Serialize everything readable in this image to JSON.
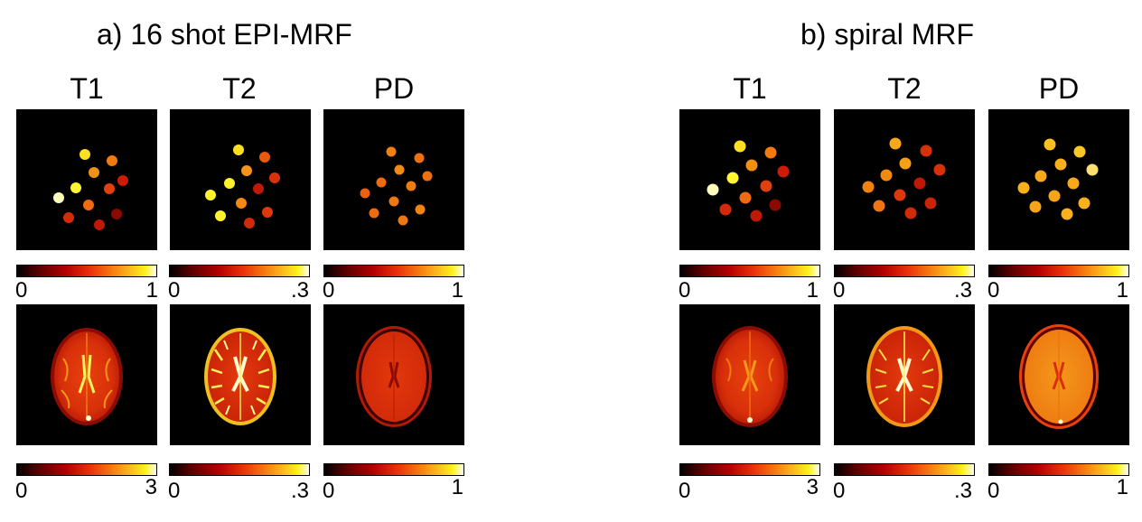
{
  "figure": {
    "panel_a": {
      "title": "a) 16 shot EPI-MRF",
      "columns": [
        {
          "label": "T1",
          "phantom_colorbar": {
            "min": "0",
            "max": "1"
          },
          "brain_colorbar": {
            "min": "0",
            "max": "3"
          }
        },
        {
          "label": "T2",
          "phantom_colorbar": {
            "min": "0",
            "max": ".3"
          },
          "brain_colorbar": {
            "min": "0",
            "max": ".3"
          }
        },
        {
          "label": "PD",
          "phantom_colorbar": {
            "min": "0",
            "max": "1"
          },
          "brain_colorbar": {
            "min": "0",
            "max": "1"
          }
        }
      ]
    },
    "panel_b": {
      "title": "b) spiral MRF",
      "columns": [
        {
          "label": "T1",
          "phantom_colorbar": {
            "min": "0",
            "max": "1"
          },
          "brain_colorbar": {
            "min": "0",
            "max": "3"
          }
        },
        {
          "label": "T2",
          "phantom_colorbar": {
            "min": "0",
            "max": ".3"
          },
          "brain_colorbar": {
            "min": "0",
            "max": ".3"
          }
        },
        {
          "label": "PD",
          "phantom_colorbar": {
            "min": "0",
            "max": "1"
          },
          "brain_colorbar": {
            "min": "0",
            "max": "1"
          }
        }
      ]
    },
    "colormap": "hot"
  }
}
